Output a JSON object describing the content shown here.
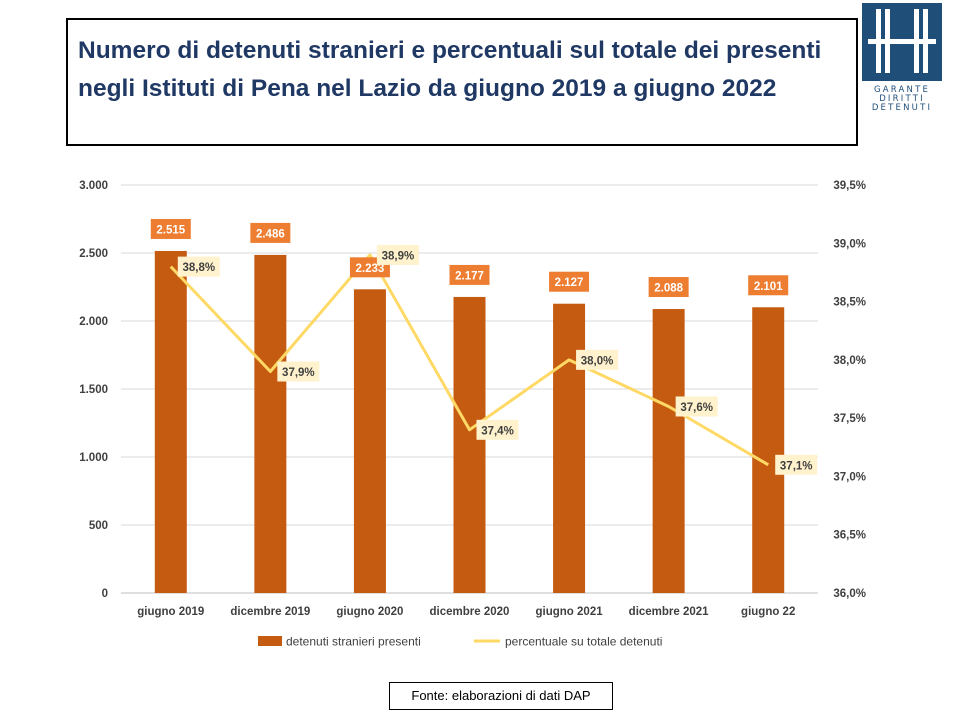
{
  "title": "Numero di detenuti stranieri e percentuali sul totale dei presenti negli Istituti di Pena nel Lazio da giugno 2019 a giugno 2022",
  "logo": {
    "icon": "garante-logo-icon",
    "lines": [
      "GARANTE",
      "DIRITTI",
      "DETENUTI"
    ],
    "color": "#1f4e79"
  },
  "source": "Fonte: elaborazioni di dati DAP",
  "chart_data": {
    "type": "bar",
    "categories": [
      "giugno 2019",
      "dicembre 2019",
      "giugno 2020",
      "dicembre 2020",
      "giugno 2021",
      "dicembre 2021",
      "giugno 22"
    ],
    "series": [
      {
        "name": "detenuti stranieri presenti",
        "type": "bar",
        "axis": "left",
        "color": "#c55a11",
        "values": [
          2515,
          2486,
          2233,
          2177,
          2127,
          2088,
          2101
        ],
        "labels": [
          "2.515",
          "2.486",
          "2.233",
          "2.177",
          "2.127",
          "2.088",
          "2.101"
        ]
      },
      {
        "name": "percentuale su totale detenuti",
        "type": "line",
        "axis": "right",
        "color": "#ffd966",
        "values": [
          38.8,
          37.9,
          38.9,
          37.4,
          38.0,
          37.6,
          37.1
        ],
        "labels": [
          "38,8%",
          "37,9%",
          "38,9%",
          "37,4%",
          "38,0%",
          "37,6%",
          "37,1%"
        ]
      }
    ],
    "y_left": {
      "ylim": [
        0,
        3000
      ],
      "ticks": [
        0,
        500,
        1000,
        1500,
        2000,
        2500,
        3000
      ],
      "tick_labels": [
        "0",
        "500",
        "1.000",
        "1.500",
        "2.000",
        "2.500",
        "3.000"
      ]
    },
    "y_right": {
      "ylim": [
        36.0,
        39.5
      ],
      "ticks": [
        36.0,
        36.5,
        37.0,
        37.5,
        38.0,
        38.5,
        39.0,
        39.5
      ],
      "tick_labels": [
        "36,0%",
        "36,5%",
        "37,0%",
        "37,5%",
        "38,0%",
        "38,5%",
        "39,0%",
        "39,5%"
      ]
    },
    "grid": true,
    "legend_position": "bottom"
  }
}
